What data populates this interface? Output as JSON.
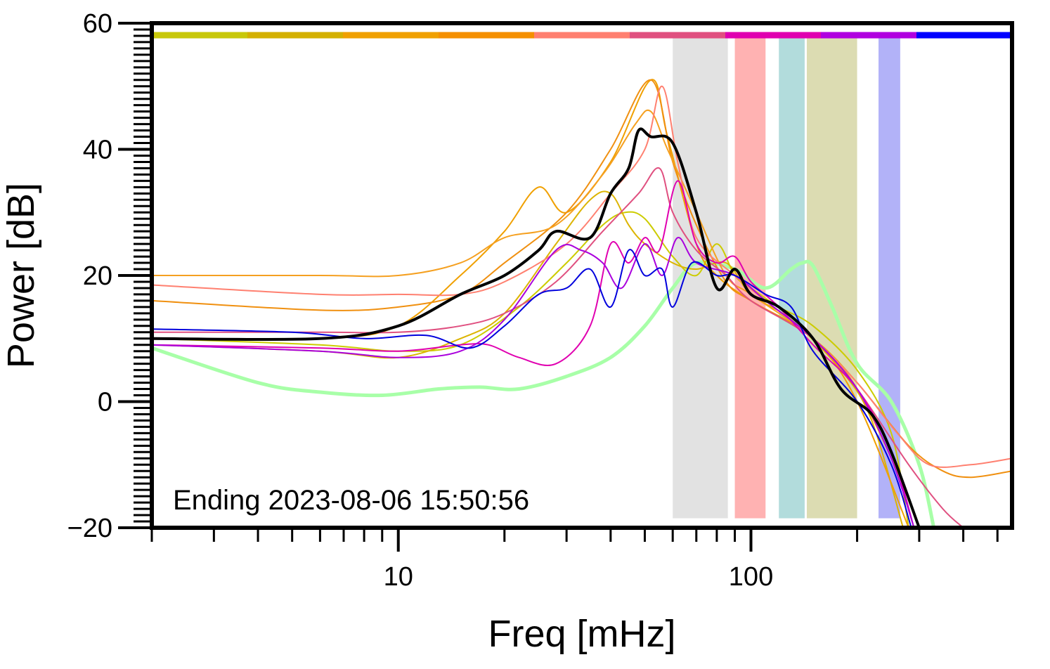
{
  "chart_data": {
    "type": "line",
    "title": "",
    "xlabel": "Freq [mHz]",
    "ylabel": "Power [dB]",
    "x_scale": "log",
    "xlim": [
      2,
      550
    ],
    "ylim": [
      -20,
      60
    ],
    "x_ticks": [
      10,
      100
    ],
    "y_ticks": [
      60,
      40,
      20,
      0,
      -20
    ],
    "grid": false,
    "annotation": "Ending 2023-08-06 15:50:56",
    "color_bar": [
      "#c8c80a",
      "#d4b000",
      "#f0a000",
      "#f59000",
      "#ff8070",
      "#e05080",
      "#e000b0",
      "#b000e0",
      "#0000ff"
    ],
    "bands": [
      {
        "x0": 60,
        "x1": 86,
        "color": "#e2e2e2"
      },
      {
        "x0": 90,
        "x1": 110,
        "color": "#ffb2b2"
      },
      {
        "x0": 120,
        "x1": 142,
        "color": "#b2dcdc"
      },
      {
        "x0": 144,
        "x1": 200,
        "color": "#dcdcb2"
      },
      {
        "x0": 230,
        "x1": 265,
        "color": "#b2b2f8"
      }
    ],
    "series": [
      {
        "color": "#a8ffa8",
        "width": 5,
        "points": [
          [
            2,
            8.5
          ],
          [
            4,
            3
          ],
          [
            6,
            1.5
          ],
          [
            9,
            1
          ],
          [
            13,
            2
          ],
          [
            17,
            2.3
          ],
          [
            22,
            2
          ],
          [
            30,
            4
          ],
          [
            40,
            7
          ],
          [
            50,
            12
          ],
          [
            60,
            18
          ],
          [
            70,
            22
          ],
          [
            90,
            21
          ],
          [
            110,
            18
          ],
          [
            130,
            21
          ],
          [
            140,
            22
          ],
          [
            150,
            21.5
          ],
          [
            170,
            15
          ],
          [
            200,
            6
          ],
          [
            250,
            0
          ],
          [
            300,
            -10
          ],
          [
            330,
            -20
          ]
        ]
      },
      {
        "color": "#cccc00",
        "width": 2,
        "points": [
          [
            2,
            10
          ],
          [
            6,
            9
          ],
          [
            10,
            8
          ],
          [
            15,
            9
          ],
          [
            22,
            15
          ],
          [
            30,
            22
          ],
          [
            38,
            28
          ],
          [
            44,
            30
          ],
          [
            50,
            29
          ],
          [
            60,
            23
          ],
          [
            70,
            20
          ],
          [
            80,
            25
          ],
          [
            90,
            20
          ],
          [
            100,
            18
          ],
          [
            120,
            15
          ],
          [
            150,
            12
          ],
          [
            200,
            5
          ],
          [
            250,
            -5
          ],
          [
            280,
            -20
          ]
        ]
      },
      {
        "color": "#dcb400",
        "width": 2,
        "points": [
          [
            2,
            9
          ],
          [
            6,
            8
          ],
          [
            10,
            7
          ],
          [
            15,
            10
          ],
          [
            20,
            14
          ],
          [
            28,
            25
          ],
          [
            35,
            32
          ],
          [
            40,
            33
          ],
          [
            45,
            28
          ],
          [
            50,
            25
          ],
          [
            60,
            22
          ],
          [
            70,
            21
          ],
          [
            85,
            22
          ],
          [
            100,
            17
          ],
          [
            130,
            13
          ],
          [
            180,
            5
          ],
          [
            220,
            -3
          ],
          [
            270,
            -20
          ]
        ]
      },
      {
        "color": "#f0a000",
        "width": 2,
        "points": [
          [
            2,
            10
          ],
          [
            6,
            10
          ],
          [
            10,
            12
          ],
          [
            15,
            20
          ],
          [
            20,
            27
          ],
          [
            25,
            34
          ],
          [
            30,
            30
          ],
          [
            40,
            38
          ],
          [
            52,
            51
          ],
          [
            58,
            42
          ],
          [
            70,
            25
          ],
          [
            80,
            20
          ],
          [
            100,
            16
          ],
          [
            150,
            10
          ],
          [
            200,
            0
          ],
          [
            280,
            -20
          ]
        ]
      },
      {
        "color": "#f09010",
        "width": 2,
        "points": [
          [
            2,
            16
          ],
          [
            6,
            14.5
          ],
          [
            10,
            15
          ],
          [
            15,
            17
          ],
          [
            20,
            22
          ],
          [
            30,
            30
          ],
          [
            40,
            40
          ],
          [
            52,
            51
          ],
          [
            60,
            38
          ],
          [
            70,
            28
          ],
          [
            85,
            19
          ],
          [
            100,
            16
          ],
          [
            150,
            10
          ],
          [
            200,
            3
          ],
          [
            280,
            -7
          ],
          [
            350,
            -11
          ],
          [
            420,
            -12
          ],
          [
            550,
            -11
          ]
        ]
      },
      {
        "color": "#f5a020",
        "width": 2,
        "points": [
          [
            2,
            20
          ],
          [
            6,
            20
          ],
          [
            10,
            20
          ],
          [
            15,
            22
          ],
          [
            20,
            26
          ],
          [
            28,
            28
          ],
          [
            38,
            36
          ],
          [
            47,
            44
          ],
          [
            52,
            46
          ],
          [
            58,
            40
          ],
          [
            70,
            30
          ],
          [
            85,
            20
          ],
          [
            100,
            17
          ],
          [
            150,
            10
          ],
          [
            200,
            2
          ],
          [
            280,
            -15
          ]
        ]
      },
      {
        "color": "#ff8070",
        "width": 2,
        "points": [
          [
            2,
            18.5
          ],
          [
            6,
            17
          ],
          [
            10,
            17
          ],
          [
            15,
            17
          ],
          [
            20,
            19
          ],
          [
            30,
            25
          ],
          [
            40,
            33
          ],
          [
            50,
            40
          ],
          [
            56,
            50
          ],
          [
            62,
            38
          ],
          [
            70,
            26
          ],
          [
            90,
            20
          ],
          [
            110,
            16
          ],
          [
            150,
            10
          ],
          [
            200,
            3
          ],
          [
            260,
            -5
          ],
          [
            320,
            -10
          ],
          [
            420,
            -10
          ],
          [
            550,
            -9
          ]
        ]
      },
      {
        "color": "#e05080",
        "width": 2,
        "points": [
          [
            2,
            11
          ],
          [
            6,
            11
          ],
          [
            10,
            11
          ],
          [
            15,
            12
          ],
          [
            20,
            14
          ],
          [
            28,
            19
          ],
          [
            38,
            27
          ],
          [
            48,
            33
          ],
          [
            55,
            37
          ],
          [
            60,
            30
          ],
          [
            70,
            24
          ],
          [
            85,
            20
          ],
          [
            100,
            16
          ],
          [
            150,
            10
          ],
          [
            200,
            2
          ],
          [
            280,
            -10
          ],
          [
            350,
            -17
          ],
          [
            400,
            -20
          ]
        ]
      },
      {
        "color": "#e000b0",
        "width": 2,
        "points": [
          [
            2,
            9
          ],
          [
            6,
            8.5
          ],
          [
            10,
            8
          ],
          [
            15,
            9
          ],
          [
            18,
            9
          ],
          [
            22,
            7
          ],
          [
            28,
            6
          ],
          [
            35,
            12
          ],
          [
            40,
            25
          ],
          [
            45,
            22
          ],
          [
            50,
            26
          ],
          [
            55,
            24
          ],
          [
            62,
            35
          ],
          [
            70,
            25
          ],
          [
            80,
            22
          ],
          [
            90,
            23
          ],
          [
            100,
            19
          ],
          [
            120,
            15
          ],
          [
            150,
            9
          ],
          [
            200,
            2
          ],
          [
            250,
            -8
          ],
          [
            290,
            -20
          ]
        ]
      },
      {
        "color": "#aa00dd",
        "width": 2,
        "points": [
          [
            2,
            9
          ],
          [
            6,
            8
          ],
          [
            10,
            7
          ],
          [
            15,
            8
          ],
          [
            20,
            13
          ],
          [
            28,
            24
          ],
          [
            33,
            24
          ],
          [
            38,
            22
          ],
          [
            43,
            18
          ],
          [
            50,
            25
          ],
          [
            56,
            20
          ],
          [
            62,
            26
          ],
          [
            70,
            22
          ],
          [
            90,
            20
          ],
          [
            110,
            16
          ],
          [
            150,
            10
          ],
          [
            200,
            2
          ],
          [
            250,
            -9
          ],
          [
            290,
            -20
          ]
        ]
      },
      {
        "color": "#0000dd",
        "width": 2,
        "points": [
          [
            2,
            11.5
          ],
          [
            5,
            11
          ],
          [
            8,
            10
          ],
          [
            12,
            10.5
          ],
          [
            16,
            8.5
          ],
          [
            20,
            12
          ],
          [
            25,
            17
          ],
          [
            30,
            18
          ],
          [
            35,
            21
          ],
          [
            40,
            15
          ],
          [
            45,
            24
          ],
          [
            50,
            20
          ],
          [
            56,
            21
          ],
          [
            60,
            15
          ],
          [
            68,
            22
          ],
          [
            80,
            20
          ],
          [
            90,
            20
          ],
          [
            110,
            17
          ],
          [
            130,
            15
          ],
          [
            150,
            8
          ],
          [
            200,
            0
          ],
          [
            250,
            -10
          ],
          [
            285,
            -20
          ]
        ]
      },
      {
        "color": "#000000",
        "width": 4,
        "points": [
          [
            2,
            10
          ],
          [
            6,
            10
          ],
          [
            10,
            12
          ],
          [
            15,
            17
          ],
          [
            20,
            20
          ],
          [
            25,
            24
          ],
          [
            28,
            27
          ],
          [
            35,
            26
          ],
          [
            40,
            33
          ],
          [
            45,
            37
          ],
          [
            48,
            43
          ],
          [
            52,
            42
          ],
          [
            60,
            41
          ],
          [
            70,
            30
          ],
          [
            80,
            18
          ],
          [
            90,
            21
          ],
          [
            100,
            17
          ],
          [
            120,
            15
          ],
          [
            150,
            10
          ],
          [
            180,
            2
          ],
          [
            220,
            -2
          ],
          [
            250,
            -8
          ],
          [
            300,
            -20
          ]
        ]
      }
    ]
  }
}
